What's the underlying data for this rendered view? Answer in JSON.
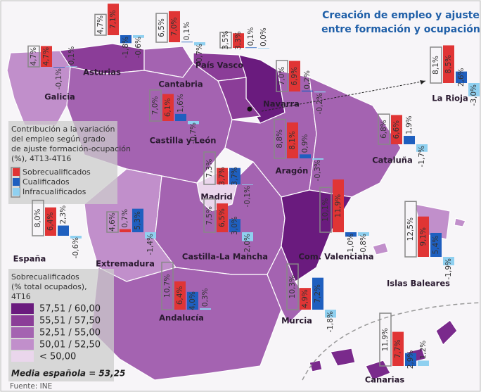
{
  "title_lines": [
    "Creación de empleo y ajuste",
    "entre formación y ocupación"
  ],
  "contribution_legend": {
    "title_lines": [
      "Contribución a la variación",
      "del empleo según grado",
      "de ajuste formación-ocupación",
      "(%), 4T13-4T16"
    ],
    "items": [
      {
        "name": "Sobrecualificados",
        "color": "#e03535"
      },
      {
        "name": "Cualificados",
        "color": "#1f5fbf"
      },
      {
        "name": "Infracualificados",
        "color": "#8fd0f0"
      }
    ],
    "total_color": "#888888"
  },
  "class_legend": {
    "title_lines": [
      "Sobrecualificados",
      "(% total ocupados),",
      "4T16"
    ],
    "items": [
      {
        "label": "57,51 / 60,00",
        "color": "#6a1b7e"
      },
      {
        "label": "55,51 / 57,50",
        "color": "#8b3d98"
      },
      {
        "label": "52,51 / 55,00",
        "color": "#a463b1"
      },
      {
        "label": "50,01 / 52,50",
        "color": "#c18fcb"
      },
      {
        "label": "< 50,00",
        "color": "#ead6ec"
      }
    ],
    "mean": "Media española = 53,25"
  },
  "source": "Fuente: INE",
  "regions": [
    {
      "name": "Galicia",
      "color": "#c18fcb",
      "values": [
        4.7,
        4.7,
        -0.1,
        0.1
      ],
      "value_labels": [
        "4,7%",
        "4,7%",
        "-0,1%",
        "0,1%"
      ]
    },
    {
      "name": "Asturias",
      "color": "#8b3d98",
      "values": [
        4.7,
        7.1,
        -1.8,
        -0.6
      ],
      "value_labels": [
        "4,7%",
        "7,1%",
        "-1,8%",
        "-0,6%"
      ]
    },
    {
      "name": "Cantabria",
      "color": "#a463b1",
      "values": [
        6.5,
        7.0,
        0.1,
        -0.7
      ],
      "value_labels": [
        "6,5%",
        "7,0%",
        "0,1%",
        "-0,7%"
      ]
    },
    {
      "name": "País Vasco",
      "color": "#8b3d98",
      "values": [
        3.5,
        3.3,
        0.1,
        0.0
      ],
      "value_labels": [
        "3,5%",
        "3,3%",
        "0,1%",
        "0,0%"
      ]
    },
    {
      "name": "Navarra",
      "color": "#6a1b7e",
      "values": [
        7.0,
        6.9,
        0.2,
        -0.2
      ],
      "value_labels": [
        "7,0%",
        "6,9%",
        "0,2%",
        "-0,2%"
      ]
    },
    {
      "name": "La Rioja",
      "color": "#8b3d98",
      "values": [
        8.1,
        8.5,
        2.6,
        -3.0
      ],
      "value_labels": [
        "8,1%",
        "8,5%",
        "2,6%",
        "-3,0%"
      ]
    },
    {
      "name": "Castilla y León",
      "color": "#a463b1",
      "values": [
        7.0,
        6.1,
        1.6,
        -0.7
      ],
      "value_labels": [
        "7,0%",
        "6,1%",
        "1,6%",
        "-0,7%"
      ]
    },
    {
      "name": "Aragón",
      "color": "#a463b1",
      "values": [
        8.8,
        8.1,
        0.9,
        -0.3
      ],
      "value_labels": [
        "8,8%",
        "8,1%",
        "0,9%",
        "-0,3%"
      ]
    },
    {
      "name": "Cataluña",
      "color": "#a463b1",
      "values": [
        6.8,
        6.6,
        1.9,
        -1.7
      ],
      "value_labels": [
        "6,8%",
        "6,6%",
        "1,9%",
        "-1,7%"
      ]
    },
    {
      "name": "Madrid",
      "color": "#ead6ec",
      "values": [
        7.3,
        3.7,
        3.7,
        -0.1
      ],
      "value_labels": [
        "7,3%",
        "3,7%",
        "3,7%",
        "-0,1%"
      ]
    },
    {
      "name": "España",
      "values": [
        8.0,
        6.4,
        2.3,
        -0.6
      ],
      "value_labels": [
        "8,0%",
        "6,4%",
        "2,3%",
        "-0,6%"
      ]
    },
    {
      "name": "Extremadura",
      "color": "#c18fcb",
      "values": [
        4.6,
        0.7,
        5.3,
        -1.4
      ],
      "value_labels": [
        "4,6%",
        "0,7%",
        "5,3%",
        "-1,4%"
      ]
    },
    {
      "name": "Castilla-La Mancha",
      "color": "#a463b1",
      "values": [
        7.5,
        6.5,
        3.0,
        -2.0
      ],
      "value_labels": [
        "7,5%",
        "6,5%",
        "3,0%",
        "-2,0%"
      ]
    },
    {
      "name": "Com. Valenciana",
      "color": "#6a1b7e",
      "values": [
        10.1,
        11.9,
        -1.0,
        -0.8
      ],
      "value_labels": [
        "10,1%",
        "11,9%",
        "-1,0%",
        "-0,8%"
      ]
    },
    {
      "name": "Islas Baleares",
      "color": "#c18fcb",
      "values": [
        12.5,
        9.1,
        5.4,
        -1.9
      ],
      "value_labels": [
        "12,5%",
        "9,1%",
        "5,4%",
        "-1,9%"
      ]
    },
    {
      "name": "Andalucía",
      "color": "#a463b1",
      "values": [
        10.7,
        6.4,
        4.0,
        0.3
      ],
      "value_labels": [
        "10,7%",
        "6,4%",
        "4,0%",
        "0,3%"
      ]
    },
    {
      "name": "Murcia",
      "color": "#a463b1",
      "values": [
        10.3,
        4.9,
        7.2,
        -1.8
      ],
      "value_labels": [
        "10,3%",
        "4,9%",
        "7,2%",
        "-1,8%"
      ]
    },
    {
      "name": "Canarias",
      "color": "#7a2a8c",
      "values": [
        11.9,
        7.7,
        2.9,
        1.2
      ],
      "value_labels": [
        "11,9%",
        "7,7%",
        "2,9%",
        "1,2%"
      ]
    }
  ]
}
